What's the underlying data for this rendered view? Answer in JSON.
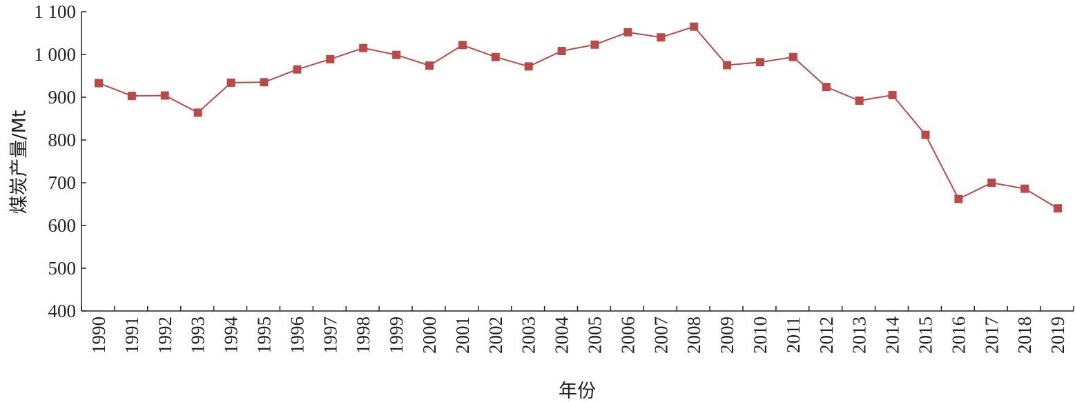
{
  "chart_data": {
    "type": "line",
    "title": "",
    "xlabel": "年份",
    "ylabel": "煤炭产量/Mt",
    "x": [
      "1990",
      "1991",
      "1992",
      "1993",
      "1994",
      "1995",
      "1996",
      "1997",
      "1998",
      "1999",
      "2000",
      "2001",
      "2002",
      "2003",
      "2004",
      "2005",
      "2006",
      "2007",
      "2008",
      "2009",
      "2010",
      "2011",
      "2012",
      "2013",
      "2014",
      "2015",
      "2016",
      "2017",
      "2018",
      "2019"
    ],
    "series": [
      {
        "values": [
          933,
          903,
          904,
          864,
          934,
          935,
          965,
          989,
          1015,
          999,
          974,
          1022,
          994,
          972,
          1008,
          1023,
          1052,
          1040,
          1065,
          975,
          982,
          994,
          924,
          892,
          905,
          812,
          662,
          700,
          686,
          640
        ],
        "color": "#b94a48",
        "marker": "square"
      }
    ],
    "ylim": [
      400,
      1100
    ],
    "yticks": [
      400,
      500,
      600,
      700,
      800,
      900,
      1000,
      1100
    ],
    "ytick_labels": [
      "400",
      "500",
      "600",
      "700",
      "800",
      "900",
      "1 000",
      "1 100"
    ],
    "grid": false,
    "legend": "none"
  }
}
